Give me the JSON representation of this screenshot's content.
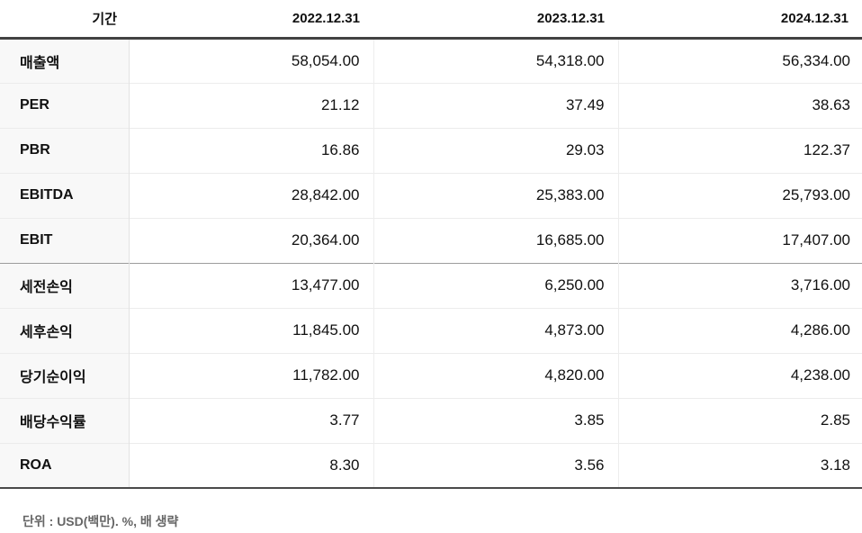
{
  "chart_data": {
    "type": "table",
    "header": {
      "period_label": "기간",
      "dates": [
        "2022.12.31",
        "2023.12.31",
        "2024.12.31"
      ]
    },
    "rows": [
      {
        "label": "매출액",
        "values": [
          "58,054.00",
          "54,318.00",
          "56,334.00"
        ]
      },
      {
        "label": "PER",
        "values": [
          "21.12",
          "37.49",
          "38.63"
        ]
      },
      {
        "label": "PBR",
        "values": [
          "16.86",
          "29.03",
          "122.37"
        ]
      },
      {
        "label": "EBITDA",
        "values": [
          "28,842.00",
          "25,383.00",
          "25,793.00"
        ]
      },
      {
        "label": "EBIT",
        "values": [
          "20,364.00",
          "16,685.00",
          "17,407.00"
        ]
      },
      {
        "label": "세전손익",
        "values": [
          "13,477.00",
          "6,250.00",
          "3,716.00"
        ]
      },
      {
        "label": "세후손익",
        "values": [
          "11,845.00",
          "4,873.00",
          "4,286.00"
        ]
      },
      {
        "label": "당기순이익",
        "values": [
          "11,782.00",
          "4,820.00",
          "4,238.00"
        ]
      },
      {
        "label": "배당수익률",
        "values": [
          "3.77",
          "3.85",
          "2.85"
        ]
      },
      {
        "label": "ROA",
        "values": [
          "8.30",
          "3.56",
          "3.18"
        ]
      }
    ],
    "layout": {
      "sections": [
        [
          "매출액",
          "PER",
          "PBR",
          "EBITDA",
          "EBIT"
        ],
        [
          "세전손익",
          "세후손익",
          "당기순이익",
          "배당수익률",
          "ROA"
        ]
      ],
      "value_alignment": "right"
    },
    "colors": {
      "header_border": "#424242",
      "section_border": "#9c9c9c",
      "row_border": "#ececec",
      "label_column_bg": "#f8f8f8",
      "text": "#111111",
      "footnote_text": "#666666"
    }
  },
  "footnote": "단위 : USD(백만). %, 배 생략"
}
